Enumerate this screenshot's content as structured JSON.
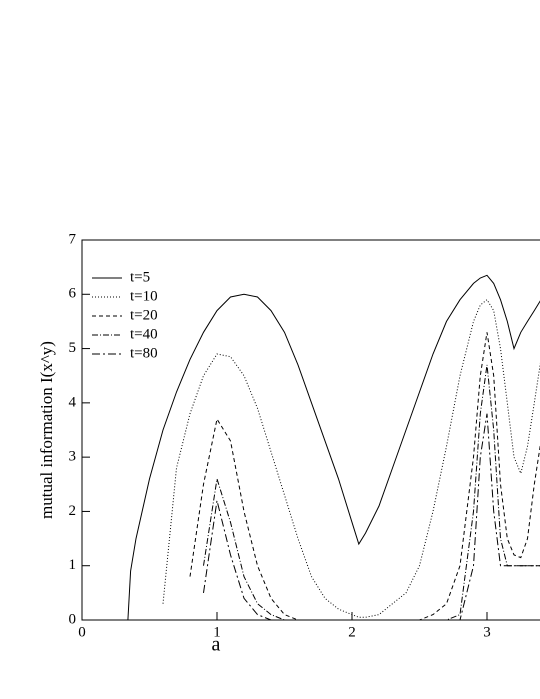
{
  "chart_data": {
    "type": "line",
    "x_label": "a",
    "y_label": "mutual information I(x^y)",
    "x": [
      0.34,
      0.36,
      0.4,
      0.5,
      0.6,
      0.7,
      0.8,
      0.9,
      1.0,
      1.1,
      1.2,
      1.3,
      1.4,
      1.5,
      1.6,
      1.7,
      1.8,
      1.9,
      2.0,
      2.05,
      2.1,
      2.2,
      2.3,
      2.4,
      2.5,
      2.6,
      2.7,
      2.8,
      2.9,
      2.95,
      3.0,
      3.05,
      3.1,
      3.15,
      3.2,
      3.25,
      3.3,
      3.35,
      3.4
    ],
    "series": [
      {
        "name": "t=5",
        "color": "#000000",
        "dash": "none",
        "values": [
          0,
          0.9,
          1.5,
          2.6,
          3.5,
          4.2,
          4.8,
          5.3,
          5.7,
          5.95,
          6.0,
          5.95,
          5.7,
          5.3,
          4.7,
          4.0,
          3.3,
          2.6,
          1.8,
          1.4,
          1.6,
          2.1,
          2.8,
          3.5,
          4.2,
          4.9,
          5.5,
          5.9,
          6.2,
          6.3,
          6.35,
          6.2,
          5.9,
          5.5,
          5.0,
          5.3,
          5.5,
          5.7,
          5.9
        ]
      },
      {
        "name": "t=10",
        "color": "#000000",
        "dash": "1,2",
        "values": [
          null,
          null,
          null,
          null,
          0.3,
          2.8,
          3.8,
          4.5,
          4.9,
          4.85,
          4.5,
          3.9,
          3.1,
          2.3,
          1.5,
          0.8,
          0.4,
          0.2,
          0.1,
          0.05,
          0.05,
          0.1,
          0.3,
          0.5,
          1.0,
          2.0,
          3.2,
          4.5,
          5.5,
          5.8,
          5.9,
          5.7,
          5.0,
          4.0,
          3.0,
          2.7,
          3.2,
          4.0,
          4.8
        ]
      },
      {
        "name": "t=20",
        "color": "#000000",
        "dash": "4,3",
        "values": [
          null,
          null,
          null,
          null,
          null,
          null,
          0.8,
          2.5,
          3.7,
          3.3,
          2.0,
          1.0,
          0.4,
          0.1,
          0,
          0,
          0,
          0,
          0,
          0,
          0,
          0,
          0,
          0,
          0,
          0.1,
          0.3,
          1.0,
          3.0,
          4.5,
          5.3,
          4.5,
          2.5,
          1.5,
          1.2,
          1.15,
          1.5,
          2.5,
          3.3
        ]
      },
      {
        "name": "t=40",
        "color": "#000000",
        "dash": "6,2,1,2",
        "values": [
          null,
          null,
          null,
          null,
          null,
          null,
          null,
          1.0,
          2.6,
          1.8,
          0.8,
          0.3,
          0.1,
          0,
          0,
          0,
          0,
          0,
          0,
          0,
          0,
          0,
          0,
          0,
          0,
          0,
          0,
          0.1,
          2.0,
          3.8,
          4.7,
          3.5,
          1.5,
          1.0,
          1.0,
          1.0,
          1.0,
          1.0,
          1.0
        ]
      },
      {
        "name": "t=80",
        "color": "#000000",
        "dash": "8,3,2,3",
        "values": [
          null,
          null,
          null,
          null,
          null,
          null,
          null,
          0.5,
          2.2,
          1.2,
          0.4,
          0.1,
          0,
          0,
          0,
          0,
          0,
          0,
          0,
          0,
          0,
          0,
          0,
          0,
          0,
          0,
          0,
          0,
          1.0,
          3.0,
          3.8,
          2.0,
          1.0,
          1.0,
          1.0,
          1.0,
          1.0,
          1.0,
          1.0
        ]
      }
    ],
    "xlim": [
      0,
      3.4
    ],
    "ylim": [
      0,
      7
    ],
    "xticks": [
      0,
      1,
      2,
      3
    ],
    "yticks": [
      0,
      1,
      2,
      3,
      4,
      5,
      6,
      7
    ],
    "legend": "upper-left"
  }
}
